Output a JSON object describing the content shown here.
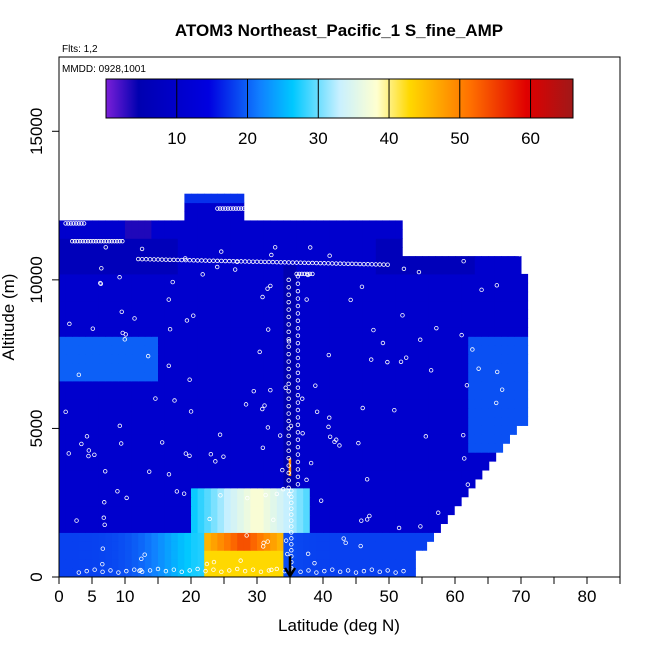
{
  "chart_data": {
    "type": "heatmap",
    "title": "ATOM3 Northeast_Pacific_1 S_fine_AMP",
    "subtitle_lines": [
      "Flts: 1,2",
      "MMDD: 0928,1001"
    ],
    "xlabel": "Latitude (deg N)",
    "ylabel": "Altitude (m)",
    "xlim": [
      0,
      85
    ],
    "ylim": [
      0,
      17500
    ],
    "xticks": [
      0,
      5,
      10,
      20,
      30,
      40,
      50,
      60,
      70,
      80
    ],
    "xticks_minor": [
      15,
      25,
      35,
      45,
      55,
      65,
      75,
      85
    ],
    "yticks": [
      0,
      5000,
      10000,
      15000
    ],
    "colorbar": {
      "range": [
        0,
        66
      ],
      "ticks": [
        10,
        20,
        30,
        40,
        50,
        60
      ],
      "colors": [
        "#7b1fd8",
        "#0000b0",
        "#0000e0",
        "#1080ff",
        "#00c8ff",
        "#c8f0ff",
        "#ffffd0",
        "#ffd800",
        "#ff7000",
        "#e00000",
        "#a01818"
      ]
    },
    "grid": false,
    "arrow": {
      "lat": 35,
      "alt_top": 700,
      "alt_bottom": 0
    }
  }
}
